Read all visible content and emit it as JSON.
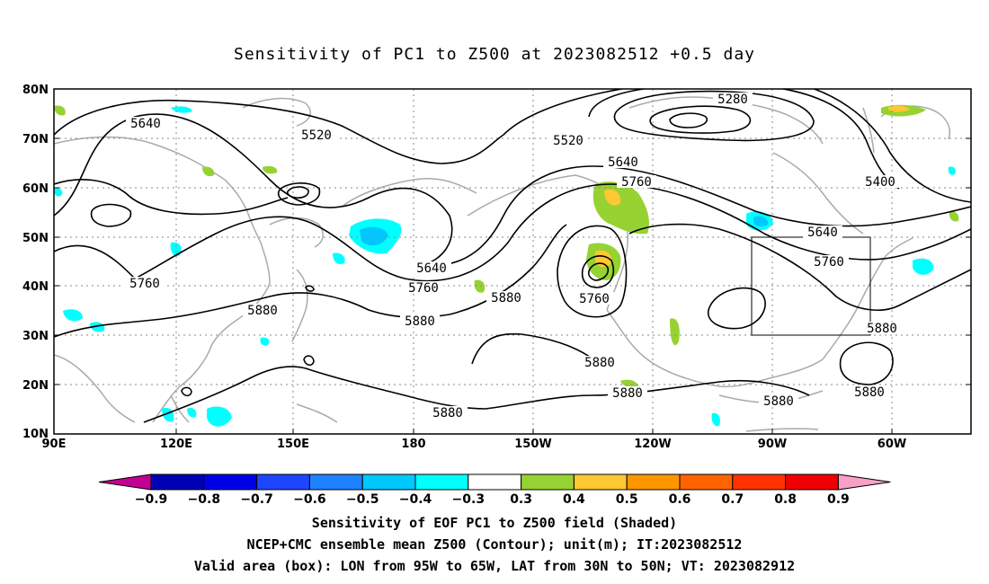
{
  "title": "Sensitivity of PC1 to Z500 at 2023082512 +0.5 day",
  "lat_labels": [
    "80N",
    "70N",
    "60N",
    "50N",
    "40N",
    "30N",
    "20N",
    "10N"
  ],
  "lon_labels": [
    "90E",
    "120E",
    "150E",
    "180",
    "150W",
    "120W",
    "90W",
    "60W"
  ],
  "contour_labels": [
    "5280",
    "5400",
    "5520",
    "5520",
    "5640",
    "5640",
    "5640",
    "5640",
    "5760",
    "5760",
    "5760",
    "5760",
    "5760",
    "5880",
    "5880",
    "5880",
    "5880",
    "5880",
    "5880",
    "5880",
    "5880"
  ],
  "colorbar_labels": [
    "−0.9",
    "−0.8",
    "−0.7",
    "−0.6",
    "−0.5",
    "−0.4",
    "−0.3",
    "0.3",
    "0.4",
    "0.5",
    "0.6",
    "0.7",
    "0.8",
    "0.9"
  ],
  "colorbar_colors": [
    "#c30096",
    "#0000b4",
    "#0000e6",
    "#1e46ff",
    "#1e82ff",
    "#00c8ff",
    "#00ffff",
    "#ffffff",
    "#96d232",
    "#ffc832",
    "#ff9600",
    "#ff6400",
    "#ff3200",
    "#f00000",
    "#f8a0c8"
  ],
  "footer": {
    "line1": "Sensitivity of EOF PC1 to Z500 field (Shaded)",
    "line2": "NCEP+CMC ensemble mean Z500 (Contour); unit(m); IT:2023082512",
    "line3": "Valid area (box): LON from 95W to 65W, LAT from 30N to 50N; VT: 2023082912"
  }
}
